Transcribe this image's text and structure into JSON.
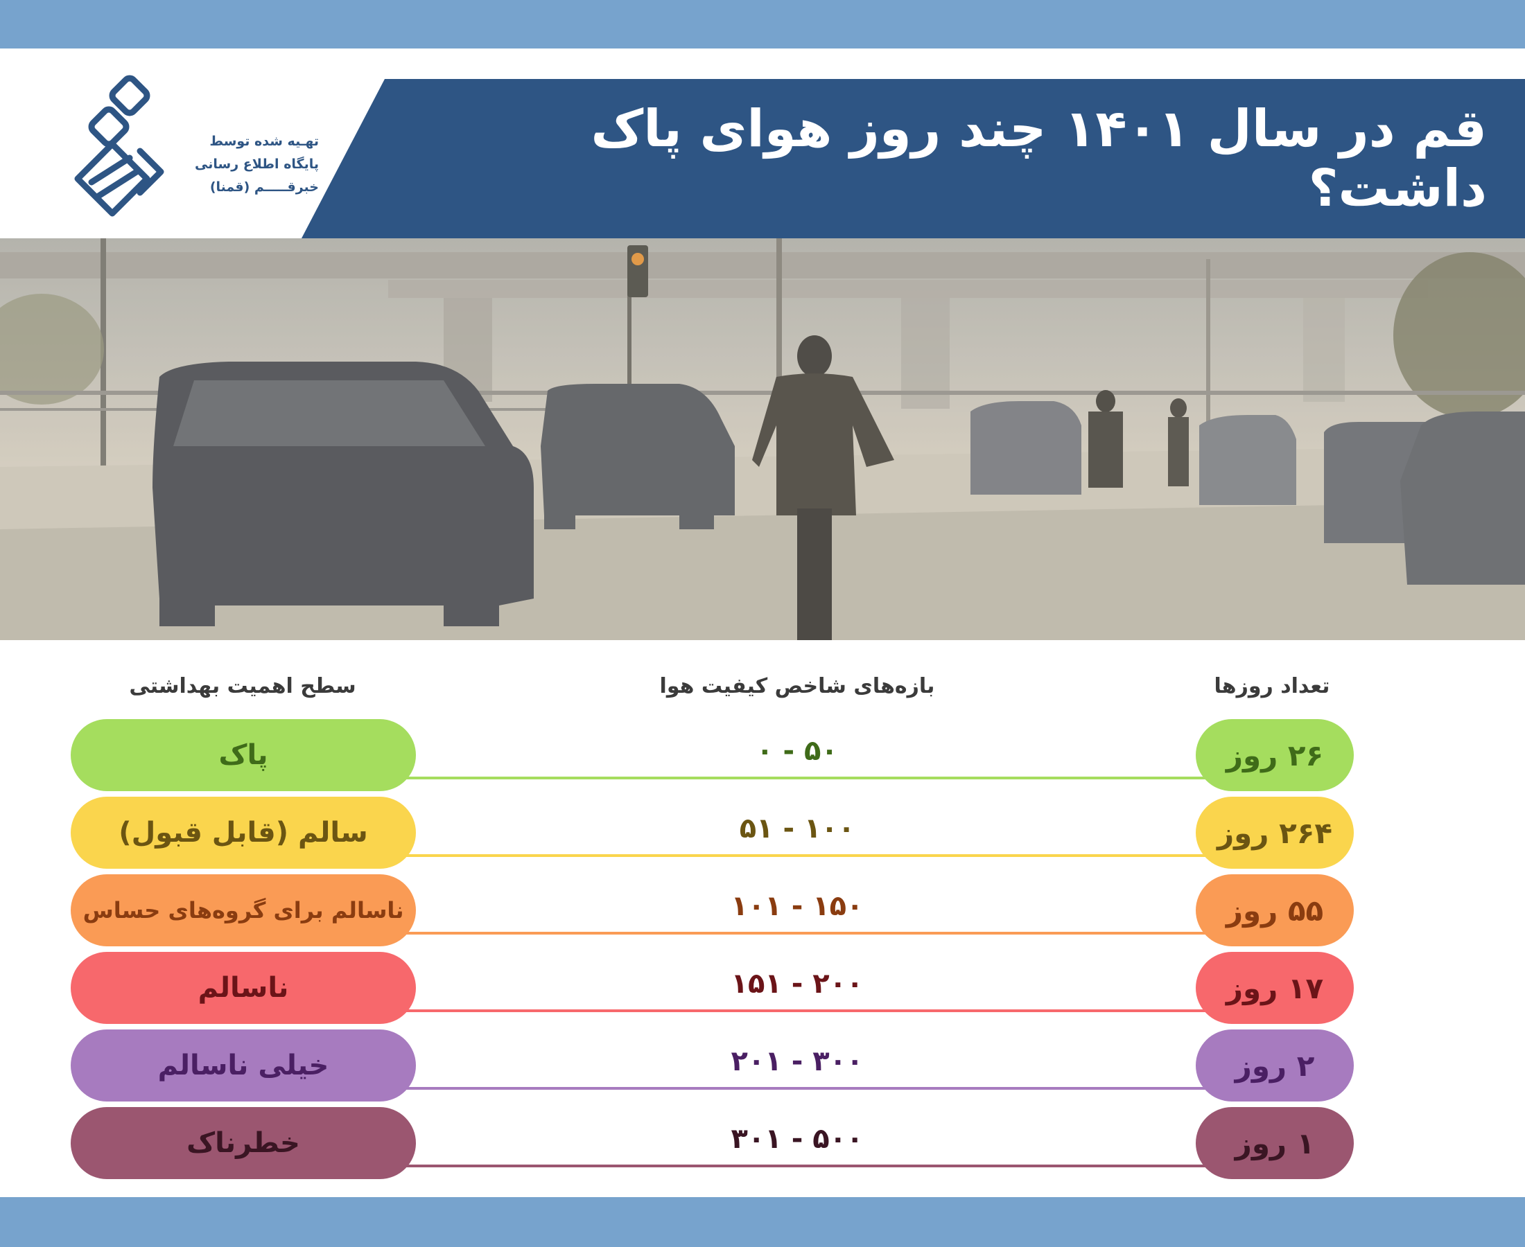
{
  "header": {
    "title": "قم در سال ۱۴۰۱ چند روز هوای پاک داشت؟",
    "credit_lines": [
      "تهـیه شده توسط",
      "پایگاه اطلاع رسانی",
      "خبرقـــــم (قمنا)"
    ],
    "logo_icon": "qomna-logo-icon"
  },
  "photo": {
    "subject": "hazy-street-traffic-photo"
  },
  "table": {
    "headers": {
      "level": "سطح اهمیت بهداشتی",
      "range": "بازه‌های شاخص کیفیت هوا",
      "days": "تعداد روزها"
    },
    "rows": [
      {
        "level": "پاک",
        "range": "۰ - ۵۰",
        "days": "۲۶ روز",
        "color": "#a5dd5e",
        "text_color": "#3f6b19"
      },
      {
        "level": "سالم (قابل قبول)",
        "range": "۵۱ - ۱۰۰",
        "days": "۲۶۴ روز",
        "color": "#fad54d",
        "text_color": "#6b5512"
      },
      {
        "level": "ناسالم برای گروه‌های حساس",
        "range": "۱۰۱ - ۱۵۰",
        "days": "۵۵ روز",
        "color": "#fa9b55",
        "text_color": "#8a3c10"
      },
      {
        "level": "ناسالم",
        "range": "۱۵۱ - ۲۰۰",
        "days": "۱۷ روز",
        "color": "#f7686c",
        "text_color": "#6b1418"
      },
      {
        "level": "خیلی ناسالم",
        "range": "۲۰۱ - ۳۰۰",
        "days": "۲ روز",
        "color": "#a77bbf",
        "text_color": "#4a1f63"
      },
      {
        "level": "خطرناک",
        "range": "۳۰۱ - ۵۰۰",
        "days": "۱ روز",
        "color": "#9b5670",
        "text_color": "#3a1523"
      }
    ]
  }
}
